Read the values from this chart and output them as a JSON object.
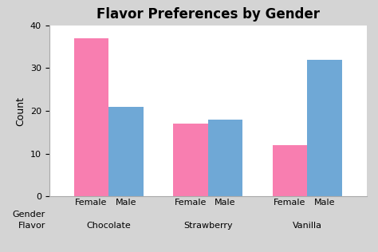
{
  "title": "Flavor Preferences by Gender",
  "flavors": [
    "Chocolate",
    "Strawberry",
    "Vanilla"
  ],
  "genders": [
    "Female",
    "Male"
  ],
  "female_values": [
    37,
    17,
    12
  ],
  "male_values": [
    21,
    18,
    32
  ],
  "female_color": "#F87EB0",
  "male_color": "#6FA8D6",
  "ylabel": "Count",
  "xlabel_line1": "Gender",
  "xlabel_line2": "Flavor",
  "ylim": [
    0,
    40
  ],
  "yticks": [
    0,
    10,
    20,
    30,
    40
  ],
  "background_color": "#D4D4D4",
  "plot_background": "#FFFFFF",
  "bar_width": 0.35,
  "title_fontsize": 12,
  "axis_fontsize": 9,
  "tick_fontsize": 8,
  "xlabel_fontsize": 8,
  "flavor_fontsize": 8
}
